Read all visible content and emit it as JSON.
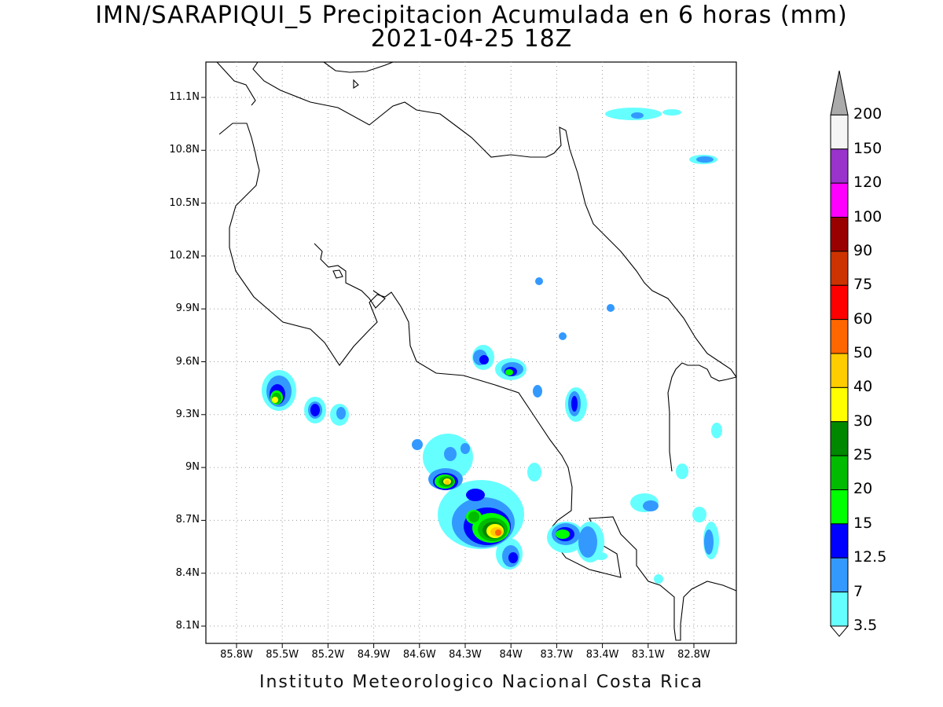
{
  "title": {
    "line1": "IMN/SARAPIQUI_5 Precipitacion Acumulada en 6 horas (mm)",
    "line2": "2021-04-25 18Z"
  },
  "map": {
    "lat_labels": [
      "11.1N",
      "10.8N",
      "10.5N",
      "10.2N",
      "9.9N",
      "9.6N",
      "9.3N",
      "9N",
      "8.7N",
      "8.4N",
      "8.1N"
    ],
    "lon_labels": [
      "85.8W",
      "85.5W",
      "85.2W",
      "84.9W",
      "84.6W",
      "84.3W",
      "84W",
      "83.7W",
      "83.4W",
      "83.1W",
      "82.8W"
    ]
  },
  "colorbar": {
    "labels": [
      "200",
      "150",
      "120",
      "100",
      "90",
      "75",
      "60",
      "50",
      "40",
      "30",
      "25",
      "20",
      "15",
      "12.5",
      "7",
      "3.5"
    ],
    "colors": [
      "#aaaaaa",
      "#f5f5f5",
      "#9933cc",
      "#ff00ff",
      "#990000",
      "#cc3300",
      "#ff0000",
      "#ff6600",
      "#ffcc00",
      "#ffff00",
      "#008800",
      "#00bb00",
      "#00ff00",
      "#0000ff",
      "#3399ff",
      "#66ffff"
    ]
  },
  "footer": "Instituto Meteorologico Nacional Costa Rica"
}
